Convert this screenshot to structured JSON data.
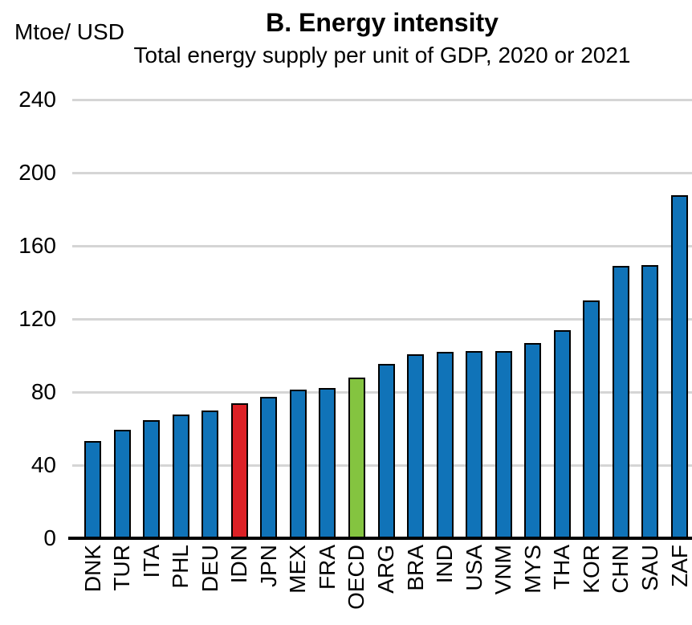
{
  "header": {
    "unit_label": "Mtoe/ USD",
    "title": "B. Energy intensity",
    "subtitle": "Total energy supply per unit of GDP, 2020 or 2021"
  },
  "chart_data": {
    "type": "bar",
    "title": "B. Energy intensity",
    "subtitle": "Total energy supply per unit of GDP, 2020 or 2021",
    "ylabel": "Mtoe/ USD",
    "categories": [
      "DNK",
      "TUR",
      "ITA",
      "PHL",
      "DEU",
      "IDN",
      "JPN",
      "MEX",
      "FRA",
      "OECD",
      "ARG",
      "BRA",
      "IND",
      "USA",
      "VNM",
      "MYS",
      "THA",
      "KOR",
      "CHN",
      "SAU",
      "ZAF"
    ],
    "values": [
      53,
      59.5,
      64.5,
      67.5,
      70,
      74,
      77.5,
      81.5,
      82,
      88,
      95.5,
      100.5,
      102,
      102.5,
      102.5,
      107,
      114,
      130,
      149,
      149.5,
      187.5
    ],
    "yticks": [
      0,
      40,
      80,
      120,
      160,
      200,
      240
    ],
    "ylim": [
      0,
      240
    ],
    "grid": "horizontal-gridlines-on",
    "legend": "none",
    "colors": {
      "default_bar": "#1073b8",
      "IDN": "#dd2126",
      "OECD": "#84c440",
      "bar_outline": "#000000",
      "gridline": "#d5d5d5",
      "axis_line": "#000000",
      "text": "#000000"
    }
  }
}
